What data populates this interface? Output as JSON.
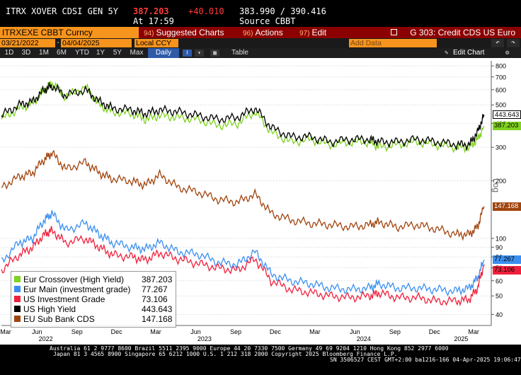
{
  "ticker": {
    "name": "ITRX XOVER CDSI GEN 5Y",
    "price": "387.203",
    "change": "+40.010",
    "bid_ask": "383.990 / 390.416",
    "time": "At 17:59",
    "source": "Source CBBT"
  },
  "toolbar": {
    "security": "ITRXEXE CBBT Curncy",
    "suggested_num": "94)",
    "suggested": "Suggested Charts",
    "actions_num": "96)",
    "actions": "Actions",
    "edit_num": "97)",
    "edit": "Edit",
    "title": "G 303: Credit CDS US Euro"
  },
  "controls": {
    "start_date": "03/21/2022",
    "end_date": "04/04/2025",
    "currency": "Local CCY",
    "add_data_placeholder": "Add Data",
    "edit_chart": "Edit Chart",
    "periods": [
      "1D",
      "3D",
      "1M",
      "6M",
      "YTD",
      "1Y",
      "5Y",
      "Max"
    ],
    "frequency": "Daily",
    "table_label": "Table"
  },
  "colors": {
    "crossover": "#7fd21e",
    "main": "#3b8ff0",
    "us_ig": "#f0203c",
    "us_hy": "#000000",
    "eu_sub": "#a0440e",
    "bloomberg_orange": "#f7941d",
    "toolbar_red": "#8b0000"
  },
  "chart_data": {
    "type": "line",
    "yscale": "log",
    "ylim": [
      35,
      850
    ],
    "yticks": [
      40,
      50,
      60,
      70,
      80,
      90,
      100,
      200,
      300,
      400,
      500,
      600,
      700,
      800
    ],
    "axis_scale_label": "Log",
    "x_month_labels": [
      "Mar",
      "Jun",
      "Sep",
      "Dec",
      "Mar",
      "Jun",
      "Sep",
      "Dec",
      "Mar",
      "Jun",
      "Sep",
      "Dec",
      "Mar"
    ],
    "x_year_labels": [
      "2022",
      "2023",
      "2024",
      "2025"
    ],
    "x": [
      "2022-03-21",
      "2022-05-01",
      "2022-06-01",
      "2022-06-28",
      "2022-07-15",
      "2022-08-15",
      "2022-09-30",
      "2022-11-01",
      "2022-12-01",
      "2023-01-15",
      "2023-02-15",
      "2023-03-20",
      "2023-05-01",
      "2023-06-15",
      "2023-08-01",
      "2023-09-15",
      "2023-10-25",
      "2023-12-01",
      "2024-01-15",
      "2024-03-01",
      "2024-04-15",
      "2024-06-01",
      "2024-07-15",
      "2024-08-05",
      "2024-09-15",
      "2024-11-01",
      "2024-12-15",
      "2025-01-30",
      "2025-03-01",
      "2025-03-20",
      "2025-04-04"
    ],
    "series": [
      {
        "name": "Eur Crossover (High Yield)",
        "last": "387.203",
        "values": [
          420,
          480,
          510,
          600,
          650,
          550,
          620,
          500,
          460,
          450,
          420,
          440,
          430,
          420,
          390,
          400,
          460,
          360,
          320,
          330,
          310,
          320,
          320,
          300,
          310,
          320,
          310,
          300,
          300,
          330,
          387
        ]
      },
      {
        "name": "Eur Main (investment grade)",
        "last": "77.267",
        "values": [
          75,
          95,
          100,
          125,
          135,
          110,
          120,
          105,
          95,
          90,
          88,
          95,
          85,
          83,
          75,
          73,
          85,
          65,
          60,
          58,
          55,
          54,
          55,
          58,
          55,
          55,
          54,
          53,
          55,
          62,
          77.3
        ]
      },
      {
        "name": "US Investment Grade",
        "last": "73.106",
        "values": [
          68,
          82,
          90,
          105,
          110,
          95,
          100,
          90,
          82,
          80,
          77,
          84,
          78,
          74,
          70,
          68,
          78,
          60,
          54,
          52,
          50,
          49,
          50,
          52,
          49,
          49,
          47,
          47,
          48,
          55,
          73.1
        ]
      },
      {
        "name": "US High Yield",
        "last": "443.643",
        "values": [
          440,
          500,
          520,
          600,
          630,
          560,
          600,
          520,
          480,
          470,
          450,
          470,
          460,
          440,
          420,
          430,
          480,
          380,
          340,
          340,
          320,
          330,
          330,
          320,
          320,
          330,
          320,
          310,
          310,
          360,
          443.6
        ]
      },
      {
        "name": "EU Sub Bank CDS",
        "last": "147.168",
        "values": [
          185,
          210,
          220,
          260,
          280,
          230,
          250,
          220,
          205,
          200,
          190,
          215,
          185,
          175,
          160,
          155,
          170,
          135,
          125,
          120,
          118,
          115,
          118,
          122,
          115,
          118,
          112,
          105,
          105,
          115,
          147.2
        ]
      }
    ]
  },
  "footer": {
    "line1": "Australia 61 2 9777 8600 Brazil 5511 2395 9000 Europe 44 20 7330 7500 Germany 49 69 9204 1210 Hong Kong 852 2977 6000",
    "line2": "Japan 81 3 4565 8900       Singapore 65 6212 1000       U.S. 1 212 318 2000              Copyright 2025 Bloomberg Finance L.P.",
    "line3": "SN 3506527 CEST GMT+2:00 ba1216-166 04-Apr-2025 19:06:47"
  }
}
